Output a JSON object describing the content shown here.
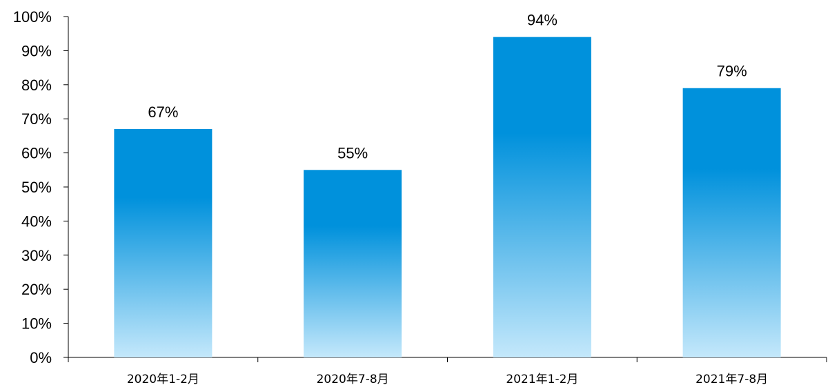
{
  "chart_data": {
    "type": "bar",
    "title": "",
    "xlabel": "",
    "ylabel": "",
    "categories": [
      "2020年1-2月",
      "2020年7-8月",
      "2021年1-2月",
      "2021年7-8月"
    ],
    "values": [
      67,
      55,
      94,
      79
    ],
    "data_labels": [
      "67%",
      "55%",
      "94%",
      "79%"
    ],
    "ylim": [
      0,
      100
    ],
    "yticks": [
      0,
      10,
      20,
      30,
      40,
      50,
      60,
      70,
      80,
      90,
      100
    ],
    "ytick_labels": [
      "0%",
      "10%",
      "20%",
      "30%",
      "40%",
      "50%",
      "60%",
      "70%",
      "80%",
      "90%",
      "100%"
    ],
    "grid": false,
    "legend": "none",
    "colors": {
      "bar_top": "#0091dc",
      "bar_bottom": "#c4e8fb"
    }
  }
}
